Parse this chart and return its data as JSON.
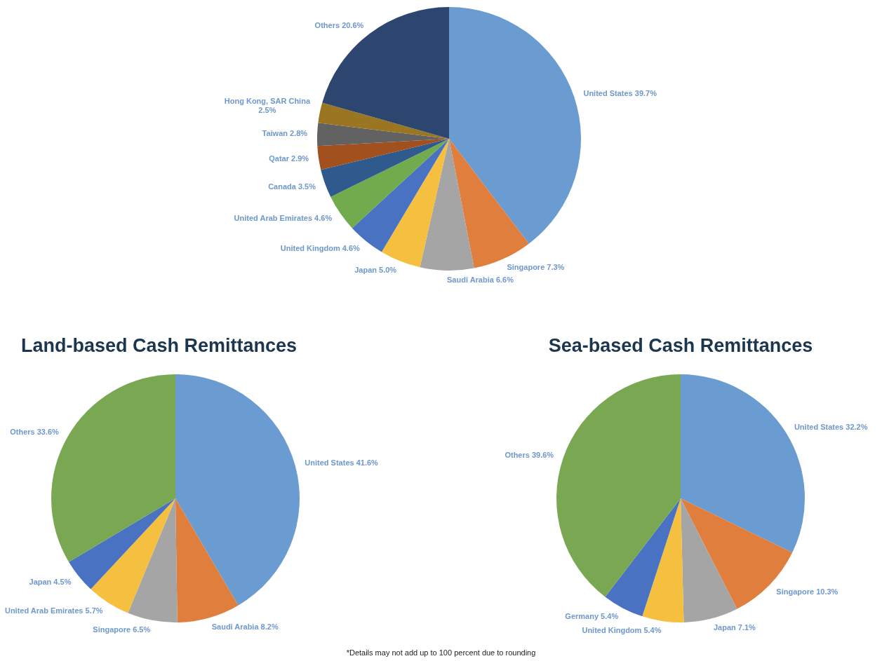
{
  "chart_data": [
    {
      "type": "pie",
      "categories": [
        "United States",
        "Singapore",
        "Saudi Arabia",
        "Japan",
        "United Kingdom",
        "United Arab Emirates",
        "Canada",
        "Qatar",
        "Taiwan",
        "Hong Kong, SAR China",
        "Others"
      ],
      "values": [
        39.7,
        7.3,
        6.6,
        5.0,
        4.6,
        4.6,
        3.5,
        2.9,
        2.8,
        2.5,
        20.6
      ],
      "value_labels": [
        "39.7%",
        "7.3%",
        "6.6%",
        "5.0%",
        "4.6%",
        "4.6%",
        "3.5%",
        "2.9%",
        "2.8%",
        "2.5%",
        "20.6%"
      ],
      "colors": [
        "#6a9bd1",
        "#e07e3e",
        "#a5a5a5",
        "#f5bf3f",
        "#4a72c2",
        "#72ab4e",
        "#2f5a8e",
        "#a1501e",
        "#626262",
        "#9a7522",
        "#2c4670"
      ]
    },
    {
      "type": "pie",
      "title": "Land-based Cash Remittances",
      "categories": [
        "United States",
        "Saudi Arabia",
        "Singapore",
        "United Arab Emirates",
        "Japan",
        "Others"
      ],
      "values": [
        41.6,
        8.2,
        6.5,
        5.7,
        4.5,
        33.6
      ],
      "value_labels": [
        "41.6%",
        "8.2%",
        "6.5%",
        "5.7%",
        "4.5%",
        "33.6%"
      ],
      "colors": [
        "#6a9bd1",
        "#e07e3e",
        "#a5a5a5",
        "#f5bf3f",
        "#4a72c2",
        "#7aa852"
      ]
    },
    {
      "type": "pie",
      "title": "Sea-based Cash Remittances",
      "categories": [
        "United States",
        "Singapore",
        "Japan",
        "United Kingdom",
        "Germany",
        "Others"
      ],
      "values": [
        32.2,
        10.3,
        7.1,
        5.4,
        5.4,
        39.6
      ],
      "value_labels": [
        "32.2%",
        "10.3%",
        "7.1%",
        "5.4%",
        "5.4%",
        "39.6%"
      ],
      "colors": [
        "#6a9bd1",
        "#e07e3e",
        "#a5a5a5",
        "#f5bf3f",
        "#4a72c2",
        "#7aa852"
      ],
      "annotations": [
        "*Details may not add up to 100 percent due to rounding"
      ]
    }
  ]
}
